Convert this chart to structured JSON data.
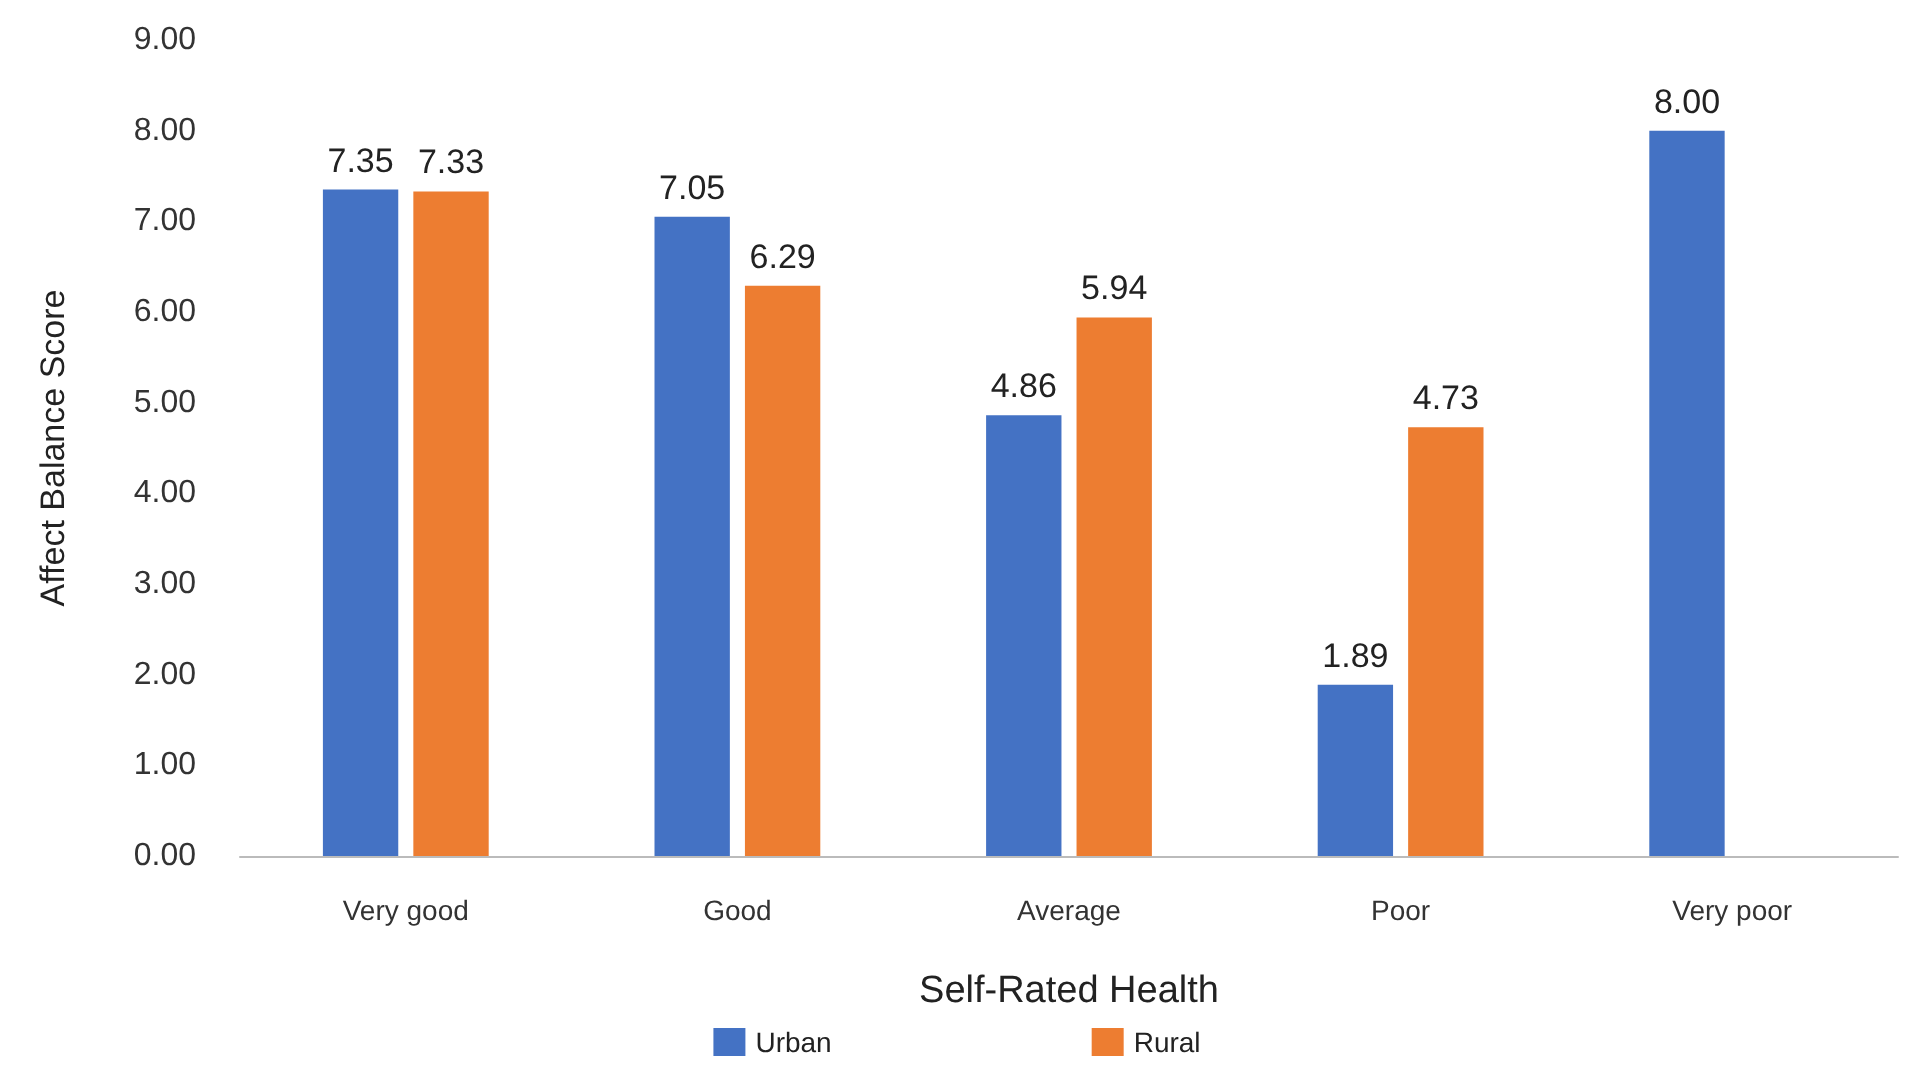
{
  "chart_data": {
    "type": "bar",
    "xlabel": "Self-Rated Health",
    "ylabel": "Affect Balance Score",
    "categories": [
      "Very good",
      "Good",
      "Average",
      "Poor",
      "Very poor"
    ],
    "series": [
      {
        "name": "Urban",
        "color": "#4472c4",
        "values": [
          7.35,
          7.05,
          4.86,
          1.89,
          8.0
        ],
        "value_labels": [
          "7.35",
          "7.05",
          "4.86",
          "1.89",
          "8.00"
        ]
      },
      {
        "name": "Rural",
        "color": "#ed7d31",
        "values": [
          7.33,
          6.29,
          5.94,
          4.73,
          null
        ],
        "value_labels": [
          "7.33",
          "6.29",
          "5.94",
          "4.73",
          null
        ]
      }
    ],
    "ylim": [
      0,
      9
    ],
    "yticks": [
      {
        "value": 0,
        "label": "0.00"
      },
      {
        "value": 1,
        "label": "1.00"
      },
      {
        "value": 2,
        "label": "2.00"
      },
      {
        "value": 3,
        "label": "3.00"
      },
      {
        "value": 4,
        "label": "4.00"
      },
      {
        "value": 5,
        "label": "5.00"
      },
      {
        "value": 6,
        "label": "6.00"
      },
      {
        "value": 7,
        "label": "7.00"
      },
      {
        "value": 8,
        "label": "8.00"
      },
      {
        "value": 9,
        "label": "9.00"
      }
    ],
    "grid": false,
    "legend": "bottom"
  }
}
